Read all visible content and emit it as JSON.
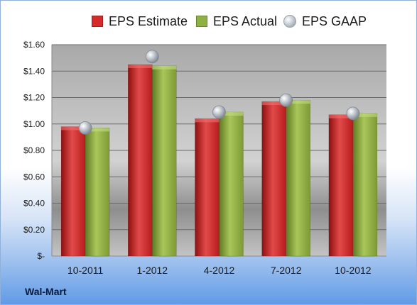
{
  "chart_data": {
    "type": "bar",
    "categories": [
      "10-2011",
      "1-2012",
      "4-2012",
      "7-2012",
      "10-2012"
    ],
    "series": [
      {
        "name": "EPS Estimate",
        "values": [
          0.98,
          1.45,
          1.04,
          1.17,
          1.07
        ],
        "color": "#d42a2a"
      },
      {
        "name": "EPS Actual",
        "values": [
          0.97,
          1.44,
          1.09,
          1.18,
          1.08
        ],
        "color": "#8fb043"
      },
      {
        "name": "EPS GAAP",
        "values": [
          0.97,
          1.51,
          1.09,
          1.18,
          1.08
        ],
        "color": "#b7bcc4",
        "marker": "bubble"
      }
    ],
    "yticks": [
      "$-",
      "$0.20",
      "$0.40",
      "$0.60",
      "$0.80",
      "$1.00",
      "$1.20",
      "$1.40",
      "$1.60"
    ],
    "ylim": [
      0,
      1.6
    ],
    "grid": true,
    "legend_position": "top"
  },
  "company": "Wal-Mart"
}
